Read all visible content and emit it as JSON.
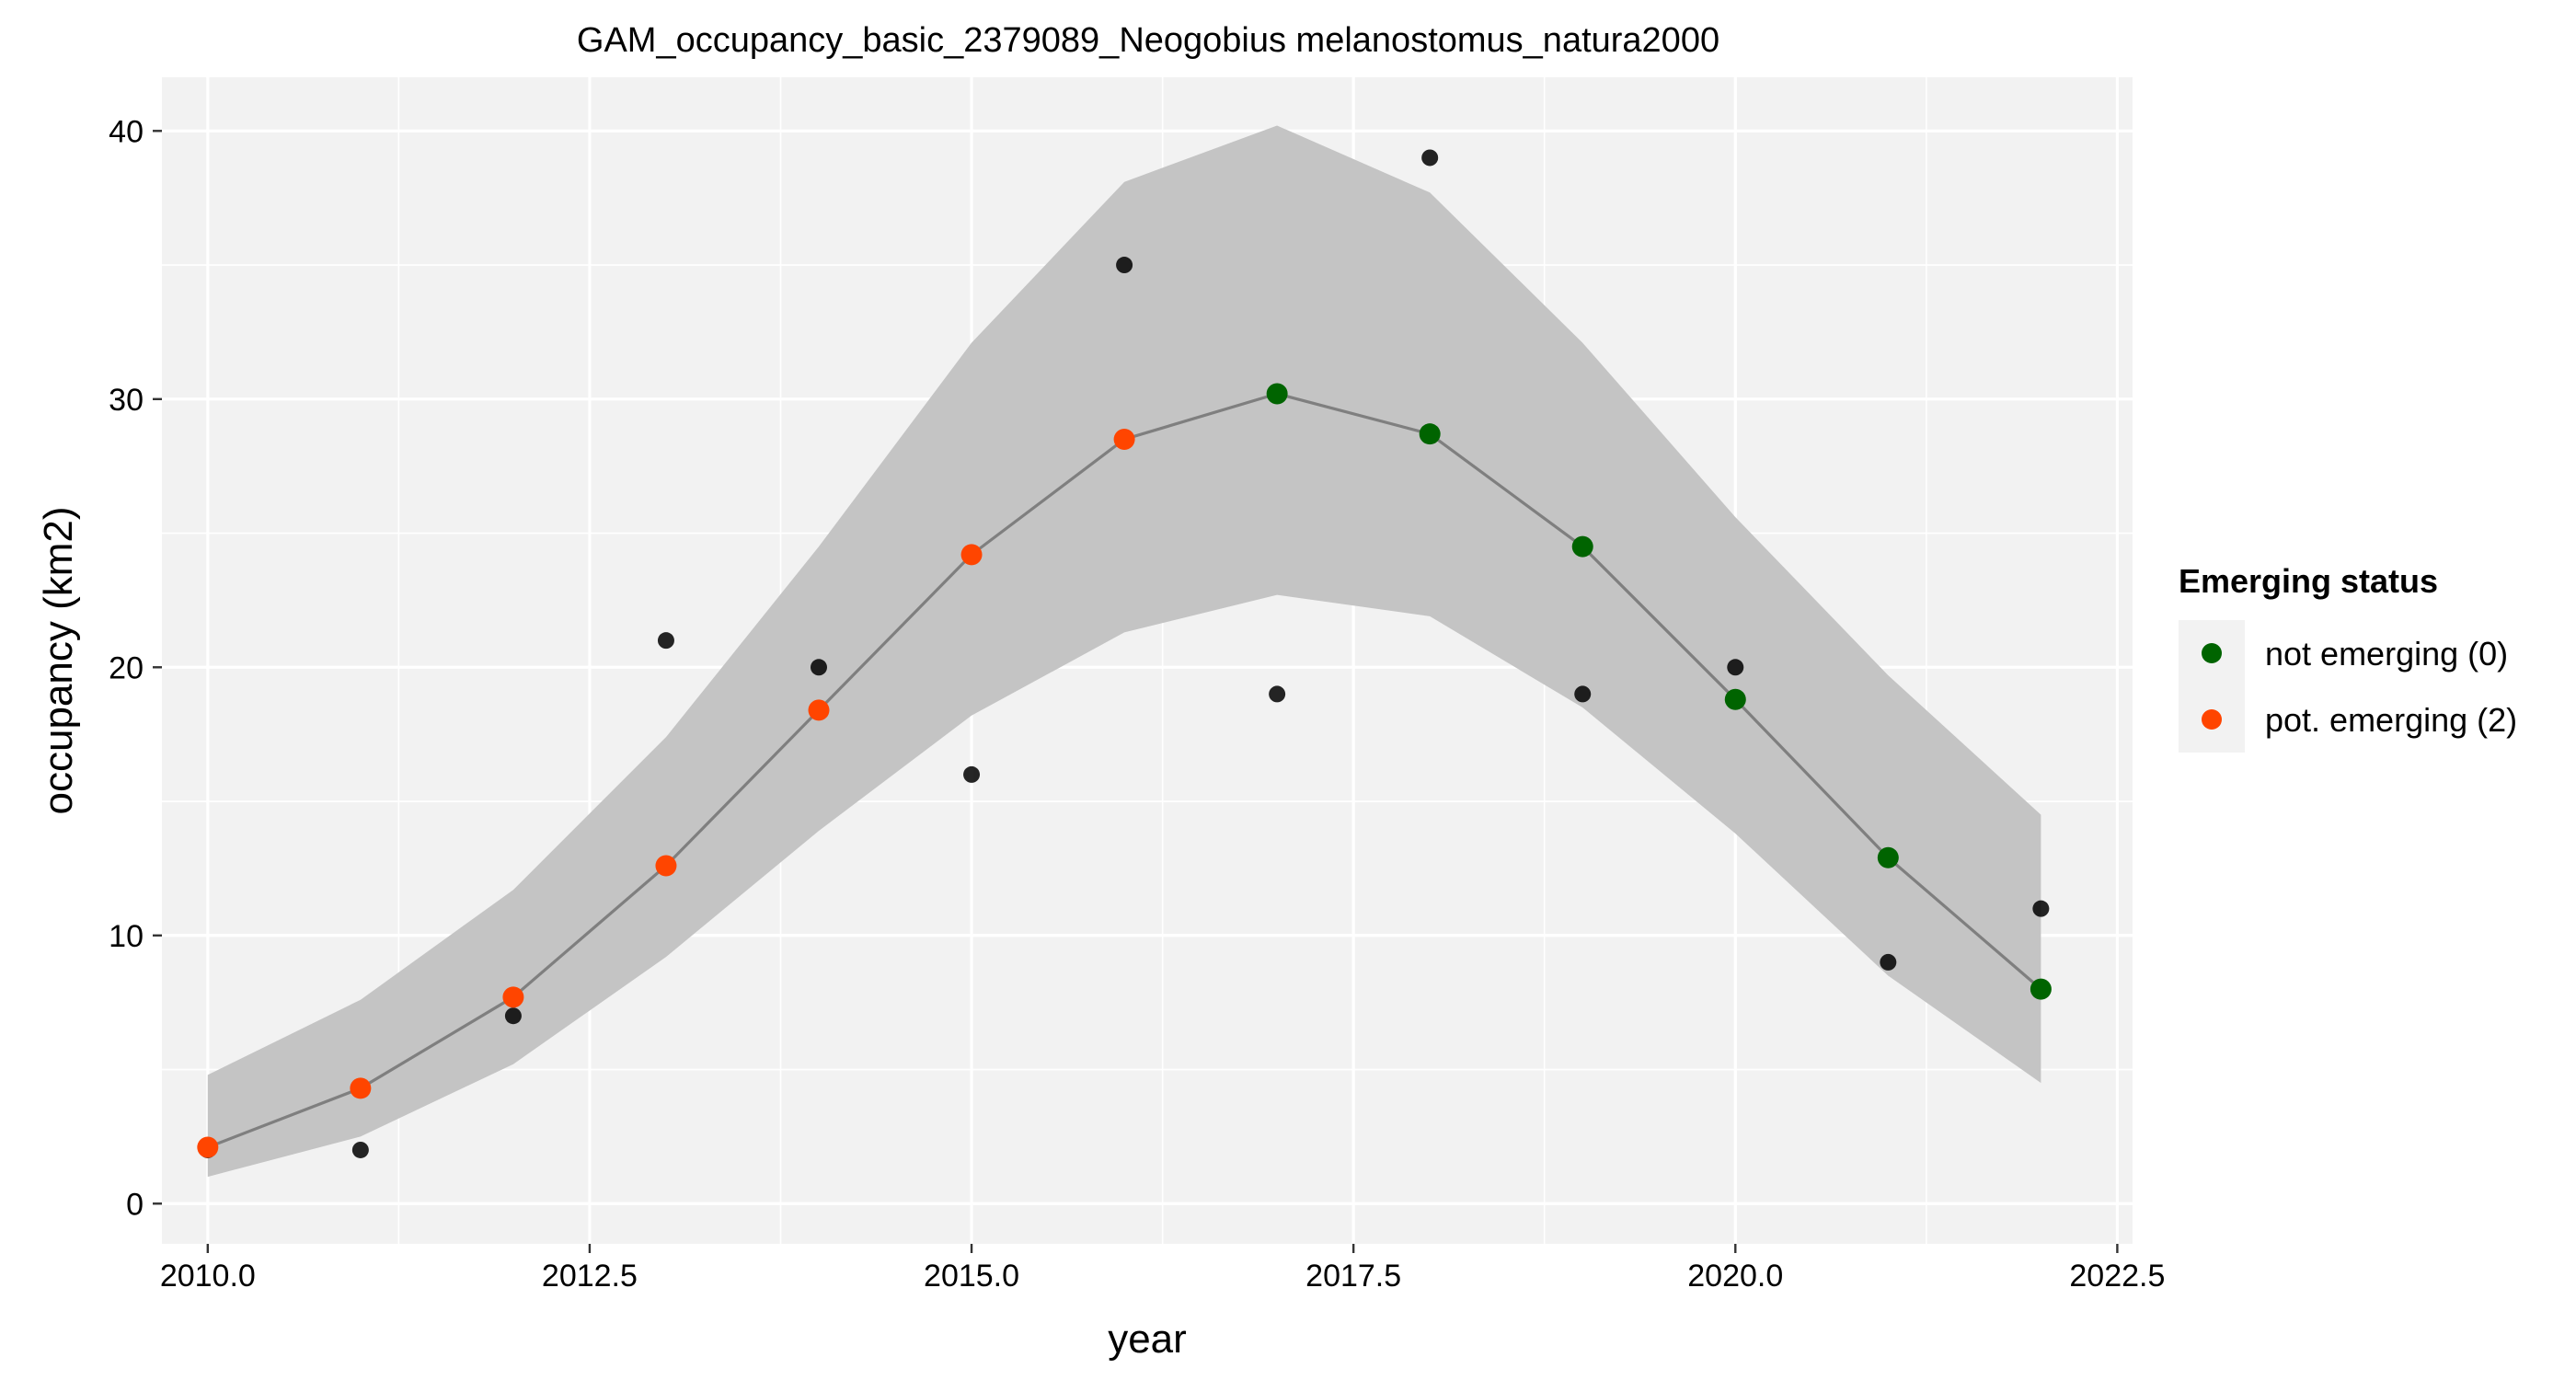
{
  "chart_data": {
    "type": "line",
    "title": "GAM_occupancy_basic_2379089_Neogobius melanostomus_natura2000",
    "xlabel": "year",
    "ylabel": "occupancy (km2)",
    "xlim": [
      2009.7,
      2022.6
    ],
    "ylim": [
      -1.5,
      42
    ],
    "x_ticks": [
      2010.0,
      2012.5,
      2015.0,
      2017.5,
      2020.0,
      2022.5
    ],
    "x_tick_labels": [
      "2010.0",
      "2012.5",
      "2015.0",
      "2017.5",
      "2020.0",
      "2022.5"
    ],
    "y_ticks": [
      0,
      10,
      20,
      30,
      40
    ],
    "y_tick_labels": [
      "0",
      "10",
      "20",
      "30",
      "40"
    ],
    "x": [
      2010,
      2011,
      2012,
      2013,
      2014,
      2015,
      2016,
      2017,
      2018,
      2019,
      2020,
      2021,
      2022
    ],
    "observed": [
      2,
      2,
      7,
      21,
      20,
      16,
      35,
      19,
      39,
      19,
      20,
      9,
      11
    ],
    "fitted": [
      2.1,
      4.3,
      7.7,
      12.6,
      18.4,
      24.2,
      28.5,
      30.2,
      28.7,
      24.5,
      18.8,
      12.9,
      8.0
    ],
    "ci_upper": [
      4.8,
      7.6,
      11.7,
      17.4,
      24.5,
      32.1,
      38.1,
      40.2,
      37.7,
      32.1,
      25.6,
      19.7,
      14.5
    ],
    "ci_lower": [
      1.0,
      2.5,
      5.2,
      9.2,
      13.9,
      18.2,
      21.3,
      22.7,
      21.9,
      18.5,
      13.8,
      8.5,
      4.5
    ],
    "status": [
      2,
      2,
      2,
      2,
      2,
      2,
      2,
      0,
      0,
      0,
      0,
      0,
      0
    ],
    "legend": {
      "title": "Emerging status",
      "placement": "right",
      "items": [
        {
          "code": 0,
          "label": "not emerging (0)",
          "color": "#006400"
        },
        {
          "code": 2,
          "label": "pot. emerging (2)",
          "color": "#FF4500"
        }
      ]
    },
    "colors": {
      "panel_bg": "#F2F2F2",
      "grid": "#FFFFFF",
      "ribbon": "#C4C4C4",
      "line": "#7F7F7F",
      "observed_point": "#000000"
    },
    "grid": true
  }
}
